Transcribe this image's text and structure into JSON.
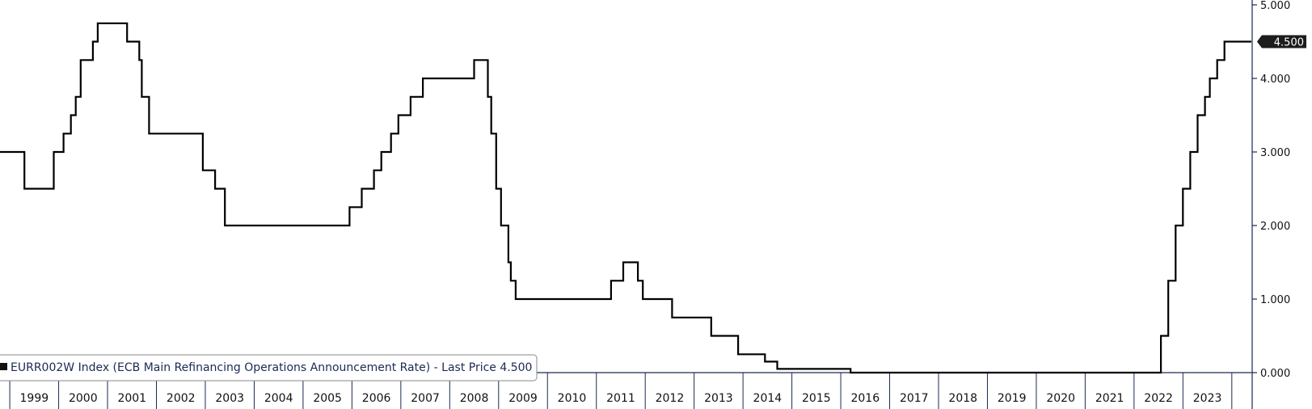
{
  "chart_data": {
    "type": "line",
    "step": true,
    "title": "",
    "xlabel": "",
    "ylabel": "",
    "x_axis": {
      "type": "time",
      "start": 1998.8,
      "end": 2024.4,
      "tick_labels": [
        "1999",
        "2000",
        "2001",
        "2002",
        "2003",
        "2004",
        "2005",
        "2006",
        "2007",
        "2008",
        "2009",
        "2010",
        "2011",
        "2012",
        "2013",
        "2014",
        "2015",
        "2016",
        "2017",
        "2018",
        "2019",
        "2020",
        "2021",
        "2022",
        "2023"
      ]
    },
    "y_axis": {
      "position": "right",
      "min": 0,
      "max": 5,
      "ticks": [
        0,
        1,
        2,
        3,
        4,
        5
      ],
      "tick_labels": [
        "0.000",
        "1.000",
        "2.000",
        "3.000",
        "4.000",
        "5.000"
      ]
    },
    "grid": false,
    "legend": {
      "position": "bottom-left",
      "entries": [
        "EURR002W Index (ECB Main Refinancing Operations Announcement Rate) - Last Price 4.500"
      ]
    },
    "last_price": {
      "value": 4.5,
      "label": "4.500"
    },
    "colors": {
      "line": "#000000",
      "axis": "#1a2a52",
      "tag_bg": "#1c1c1c"
    },
    "series": [
      {
        "name": "EURR002W Index (ECB Main Refinancing Operations Announcement Rate) - Last Price 4.500",
        "points": [
          [
            1998.8,
            3.0
          ],
          [
            1999.3,
            2.5
          ],
          [
            1999.9,
            3.0
          ],
          [
            2000.1,
            3.25
          ],
          [
            2000.25,
            3.5
          ],
          [
            2000.35,
            3.75
          ],
          [
            2000.45,
            4.25
          ],
          [
            2000.7,
            4.5
          ],
          [
            2000.8,
            4.75
          ],
          [
            2001.4,
            4.5
          ],
          [
            2001.65,
            4.25
          ],
          [
            2001.7,
            3.75
          ],
          [
            2001.85,
            3.25
          ],
          [
            2002.95,
            2.75
          ],
          [
            2003.2,
            2.5
          ],
          [
            2003.4,
            2.0
          ],
          [
            2005.95,
            2.25
          ],
          [
            2006.2,
            2.5
          ],
          [
            2006.45,
            2.75
          ],
          [
            2006.6,
            3.0
          ],
          [
            2006.8,
            3.25
          ],
          [
            2006.95,
            3.5
          ],
          [
            2007.2,
            3.75
          ],
          [
            2007.45,
            4.0
          ],
          [
            2008.5,
            4.25
          ],
          [
            2008.78,
            3.75
          ],
          [
            2008.85,
            3.25
          ],
          [
            2008.95,
            2.5
          ],
          [
            2009.05,
            2.0
          ],
          [
            2009.2,
            1.5
          ],
          [
            2009.25,
            1.25
          ],
          [
            2009.35,
            1.0
          ],
          [
            2011.3,
            1.25
          ],
          [
            2011.55,
            1.5
          ],
          [
            2011.85,
            1.25
          ],
          [
            2011.95,
            1.0
          ],
          [
            2012.55,
            0.75
          ],
          [
            2013.35,
            0.5
          ],
          [
            2013.9,
            0.25
          ],
          [
            2014.45,
            0.15
          ],
          [
            2014.7,
            0.05
          ],
          [
            2016.2,
            0.0
          ],
          [
            2022.55,
            0.5
          ],
          [
            2022.7,
            1.25
          ],
          [
            2022.85,
            2.0
          ],
          [
            2023.0,
            2.5
          ],
          [
            2023.15,
            3.0
          ],
          [
            2023.3,
            3.5
          ],
          [
            2023.45,
            3.75
          ],
          [
            2023.55,
            4.0
          ],
          [
            2023.7,
            4.25
          ],
          [
            2023.85,
            4.5
          ],
          [
            2024.4,
            4.5
          ]
        ]
      }
    ]
  }
}
